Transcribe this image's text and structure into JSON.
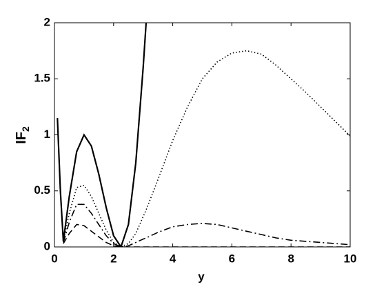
{
  "chart_data": {
    "type": "line",
    "xlabel": "y",
    "ylabel": {
      "text": "IF",
      "subscript": "2"
    },
    "x": [
      0.1,
      0.2,
      0.3,
      0.5,
      0.75,
      1,
      1.25,
      1.5,
      1.75,
      2,
      2.25,
      2.5,
      2.75,
      3,
      3.1,
      3.5,
      4,
      4.5,
      5,
      5.5,
      6,
      6.5,
      7,
      7.5,
      8,
      8.5,
      9,
      9.5,
      10
    ],
    "series": [
      {
        "style": "solid",
        "color": "#000000",
        "values": [
          1.15,
          0.5,
          0.05,
          0.45,
          0.85,
          1.0,
          0.9,
          0.65,
          0.35,
          0.1,
          0.0,
          0.2,
          0.75,
          1.6,
          2.0,
          null,
          null,
          null,
          null,
          null,
          null,
          null,
          null,
          null,
          null,
          null,
          null,
          null,
          null
        ]
      },
      {
        "style": "dotted",
        "color": "#000000",
        "values": [
          null,
          null,
          0.05,
          0.3,
          0.53,
          0.55,
          0.45,
          0.3,
          0.15,
          0.04,
          0.0,
          0.03,
          0.12,
          0.27,
          0.33,
          0.6,
          0.95,
          1.25,
          1.5,
          1.65,
          1.73,
          1.75,
          1.72,
          1.62,
          1.5,
          1.38,
          1.25,
          1.12,
          0.99
        ]
      },
      {
        "style": "dashdot",
        "color": "#000000",
        "values": [
          null,
          null,
          0.04,
          0.22,
          0.38,
          0.38,
          0.3,
          0.2,
          0.1,
          0.03,
          0.0,
          0.01,
          0.04,
          0.07,
          0.08,
          0.13,
          0.18,
          0.2,
          0.21,
          0.2,
          0.17,
          0.14,
          0.11,
          0.08,
          0.06,
          0.05,
          0.04,
          0.03,
          0.02
        ]
      },
      {
        "style": "dashed",
        "color": "#000000",
        "values": [
          null,
          null,
          0.03,
          0.12,
          0.2,
          0.19,
          0.14,
          0.09,
          0.04,
          0.01,
          0.0,
          0.0,
          0.0,
          0.0,
          0.0,
          0.0,
          0.0,
          0.0,
          0.0,
          0.0,
          0.0,
          0.0,
          0.0,
          0.0,
          0.0,
          0.0,
          0.0,
          0.0,
          0.0
        ]
      }
    ],
    "xlim": [
      0,
      10
    ],
    "xticks": [
      0,
      2,
      4,
      6,
      8,
      10
    ],
    "ylim": [
      0,
      2
    ],
    "yticks": [
      0,
      0.5,
      1,
      1.5,
      2
    ],
    "grid": false
  }
}
